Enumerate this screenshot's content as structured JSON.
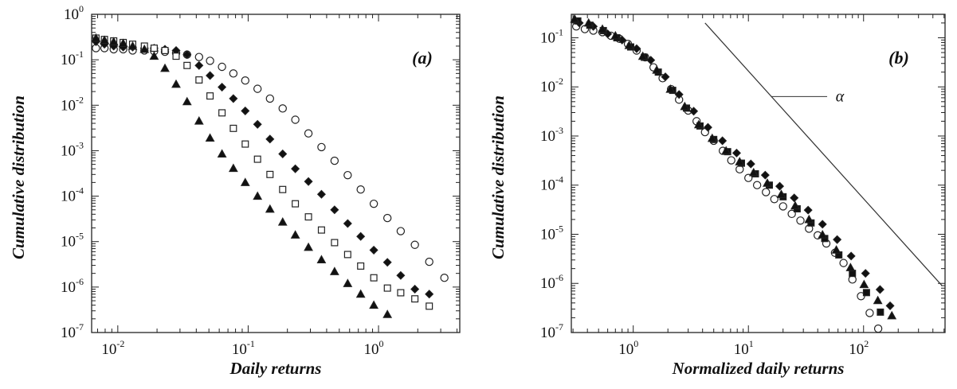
{
  "chart_data": [
    {
      "type": "scatter",
      "panel_label": "(a)",
      "xlabel": "Daily returns",
      "ylabel": "Cumulative distribution",
      "xscale": "log",
      "yscale": "log",
      "xlim": [
        0.0063,
        4.2
      ],
      "ylim": [
        1e-07,
        1
      ],
      "x_ticks": [
        {
          "value": 0.01,
          "base": "10",
          "exp": "-2"
        },
        {
          "value": 0.1,
          "base": "10",
          "exp": "-1"
        },
        {
          "value": 1,
          "base": "10",
          "exp": "0"
        }
      ],
      "y_ticks": [
        {
          "value": 1,
          "base": "10",
          "exp": "0"
        },
        {
          "value": 0.1,
          "base": "10",
          "exp": "-1"
        },
        {
          "value": 0.01,
          "base": "10",
          "exp": "-2"
        },
        {
          "value": 0.001,
          "base": "10",
          "exp": "-3"
        },
        {
          "value": 0.0001,
          "base": "10",
          "exp": "-4"
        },
        {
          "value": 1e-05,
          "base": "10",
          "exp": "-5"
        },
        {
          "value": 1e-06,
          "base": "10",
          "exp": "-6"
        },
        {
          "value": 1e-07,
          "base": "10",
          "exp": "-7"
        }
      ],
      "series": [
        {
          "marker": "circle-open",
          "x": [
            0.0068,
            0.0079,
            0.0093,
            0.011,
            0.013,
            0.016,
            0.019,
            0.023,
            0.028,
            0.034,
            0.042,
            0.051,
            0.063,
            0.077,
            0.095,
            0.118,
            0.147,
            0.184,
            0.23,
            0.29,
            0.365,
            0.46,
            0.58,
            0.73,
            0.92,
            1.17,
            1.48,
            1.9,
            2.45,
            3.2
          ],
          "y": [
            0.18,
            0.18,
            0.17,
            0.17,
            0.16,
            0.16,
            0.155,
            0.15,
            0.14,
            0.13,
            0.115,
            0.095,
            0.07,
            0.05,
            0.035,
            0.023,
            0.014,
            0.0085,
            0.0048,
            0.0024,
            0.0012,
            0.0006,
            0.00029,
            0.00014,
            6.8e-05,
            3.3e-05,
            1.7e-05,
            8.5e-06,
            3.6e-06,
            1.6e-06
          ]
        },
        {
          "marker": "diamond-filled",
          "x": [
            0.0068,
            0.0079,
            0.0093,
            0.011,
            0.013,
            0.016,
            0.019,
            0.023,
            0.028,
            0.034,
            0.042,
            0.051,
            0.063,
            0.077,
            0.095,
            0.118,
            0.147,
            0.184,
            0.23,
            0.29,
            0.365,
            0.46,
            0.58,
            0.73,
            0.92,
            1.17,
            1.48,
            1.9,
            2.45
          ],
          "y": [
            0.25,
            0.22,
            0.2,
            0.19,
            0.19,
            0.18,
            0.18,
            0.17,
            0.16,
            0.13,
            0.075,
            0.045,
            0.025,
            0.014,
            0.0075,
            0.0038,
            0.0018,
            0.00085,
            0.0004,
            0.00021,
            0.00011,
            5e-05,
            2.5e-05,
            1.3e-05,
            6.5e-06,
            3.5e-06,
            1.8e-06,
            9e-07,
            7e-07
          ]
        },
        {
          "marker": "square-open",
          "x": [
            0.0068,
            0.0079,
            0.0093,
            0.011,
            0.013,
            0.016,
            0.019,
            0.023,
            0.028,
            0.034,
            0.042,
            0.051,
            0.063,
            0.077,
            0.095,
            0.118,
            0.147,
            0.184,
            0.23,
            0.29,
            0.365,
            0.46,
            0.58,
            0.73,
            0.92,
            1.17,
            1.48,
            1.9,
            2.45
          ],
          "y": [
            0.3,
            0.28,
            0.26,
            0.24,
            0.22,
            0.2,
            0.18,
            0.16,
            0.12,
            0.075,
            0.036,
            0.016,
            0.0068,
            0.0031,
            0.0014,
            0.00065,
            0.0003,
            0.00014,
            6.8e-05,
            3.5e-05,
            1.8e-05,
            9.5e-06,
            5.2e-06,
            2.9e-06,
            1.6e-06,
            9.5e-07,
            7.5e-07,
            5.5e-07,
            3.8e-07
          ]
        },
        {
          "marker": "triangle-filled",
          "x": [
            0.0068,
            0.0079,
            0.0093,
            0.011,
            0.013,
            0.016,
            0.019,
            0.023,
            0.028,
            0.034,
            0.042,
            0.051,
            0.063,
            0.077,
            0.095,
            0.118,
            0.147,
            0.184,
            0.23,
            0.29,
            0.365,
            0.46,
            0.58,
            0.73,
            0.92,
            1.17
          ],
          "y": [
            0.3,
            0.27,
            0.25,
            0.23,
            0.2,
            0.17,
            0.12,
            0.065,
            0.029,
            0.012,
            0.0045,
            0.0019,
            0.00085,
            0.00041,
            0.0002,
            0.0001,
            5.2e-05,
            2.7e-05,
            1.4e-05,
            7.5e-06,
            4e-06,
            2.2e-06,
            1.2e-06,
            7e-07,
            4e-07,
            2.5e-07
          ]
        }
      ]
    },
    {
      "type": "scatter",
      "panel_label": "(b)",
      "xlabel": "Normalized daily returns",
      "ylabel": "Cumulative distribution",
      "xscale": "log",
      "yscale": "log",
      "xlim": [
        0.29,
        510
      ],
      "ylim": [
        1e-07,
        0.3
      ],
      "annotation": "α",
      "x_ticks": [
        {
          "value": 1,
          "base": "10",
          "exp": "0"
        },
        {
          "value": 10,
          "base": "10",
          "exp": "1"
        },
        {
          "value": 100,
          "base": "10",
          "exp": "2"
        }
      ],
      "y_ticks": [
        {
          "value": 0.1,
          "base": "10",
          "exp": "-1"
        },
        {
          "value": 0.01,
          "base": "10",
          "exp": "-2"
        },
        {
          "value": 0.001,
          "base": "10",
          "exp": "-3"
        },
        {
          "value": 0.0001,
          "base": "10",
          "exp": "-4"
        },
        {
          "value": 1e-05,
          "base": "10",
          "exp": "-5"
        },
        {
          "value": 1e-06,
          "base": "10",
          "exp": "-6"
        },
        {
          "value": 1e-07,
          "base": "10",
          "exp": "-7"
        }
      ],
      "reference_line": {
        "x": [
          4.2,
          480
        ],
        "y": [
          0.2,
          9e-07
        ]
      },
      "series": [
        {
          "marker": "circle-open",
          "x": [
            0.32,
            0.38,
            0.45,
            0.54,
            0.64,
            0.76,
            0.9,
            1.07,
            1.27,
            1.5,
            1.8,
            2.13,
            2.5,
            3.0,
            3.55,
            4.2,
            5.0,
            6.0,
            7.1,
            8.4,
            10,
            11.9,
            14.2,
            16.8,
            20,
            23.8,
            28.3,
            33.6,
            40,
            47.5,
            56.5,
            67,
            80,
            95,
            113,
            134
          ],
          "y": [
            0.17,
            0.15,
            0.14,
            0.13,
            0.11,
            0.095,
            0.075,
            0.055,
            0.04,
            0.025,
            0.015,
            0.009,
            0.0055,
            0.0033,
            0.002,
            0.0012,
            0.0008,
            0.0005,
            0.00032,
            0.00021,
            0.00014,
            0.0001,
            7.2e-05,
            5.2e-05,
            3.7e-05,
            2.6e-05,
            1.9e-05,
            1.3e-05,
            9.5e-06,
            6.5e-06,
            4.2e-06,
            2.6e-06,
            1.2e-06,
            5.5e-07,
            2.5e-07,
            1.2e-07
          ]
        },
        {
          "marker": "diamond-filled",
          "x": [
            0.34,
            0.45,
            0.6,
            0.8,
            1.07,
            1.42,
            1.9,
            2.5,
            3.35,
            4.45,
            5.95,
            7.9,
            10.5,
            14,
            18.7,
            25,
            33,
            44,
            59,
            78,
            104,
            139,
            170
          ],
          "y": [
            0.2,
            0.17,
            0.12,
            0.09,
            0.06,
            0.035,
            0.016,
            0.007,
            0.0032,
            0.0015,
            0.0008,
            0.00045,
            0.00027,
            0.00016,
            9.5e-05,
            5.5e-05,
            3.1e-05,
            1.6e-05,
            7.8e-06,
            3.6e-06,
            1.6e-06,
            7.5e-07,
            3.5e-07
          ]
        },
        {
          "marker": "square-filled",
          "x": [
            0.33,
            0.42,
            0.55,
            0.72,
            0.95,
            1.25,
            1.65,
            2.2,
            2.9,
            3.8,
            5.0,
            6.6,
            8.7,
            11.5,
            15.2,
            20,
            26.5,
            35,
            46,
            61,
            80,
            106,
            140
          ],
          "y": [
            0.22,
            0.18,
            0.14,
            0.1,
            0.065,
            0.04,
            0.02,
            0.0085,
            0.0037,
            0.0016,
            0.00085,
            0.00048,
            0.00028,
            0.00017,
            0.0001,
            5.8e-05,
            3.3e-05,
            1.7e-05,
            8.2e-06,
            3.8e-06,
            1.6e-06,
            6.5e-07,
            2.6e-07
          ]
        },
        {
          "marker": "triangle-filled",
          "x": [
            0.31,
            0.41,
            0.54,
            0.7,
            0.92,
            1.21,
            1.6,
            2.1,
            2.8,
            3.7,
            4.85,
            6.4,
            8.4,
            11.1,
            14.6,
            19.3,
            25.5,
            33.6,
            44,
            58,
            77,
            101,
            133,
            176
          ],
          "y": [
            0.24,
            0.2,
            0.15,
            0.11,
            0.07,
            0.042,
            0.022,
            0.009,
            0.004,
            0.0017,
            0.0009,
            0.0005,
            0.0003,
            0.00018,
            0.00011,
            6.5e-05,
            3.8e-05,
            2e-05,
            9.8e-06,
            4.8e-06,
            2.1e-06,
            9.5e-07,
            4.5e-07,
            2.2e-07
          ]
        }
      ]
    }
  ]
}
